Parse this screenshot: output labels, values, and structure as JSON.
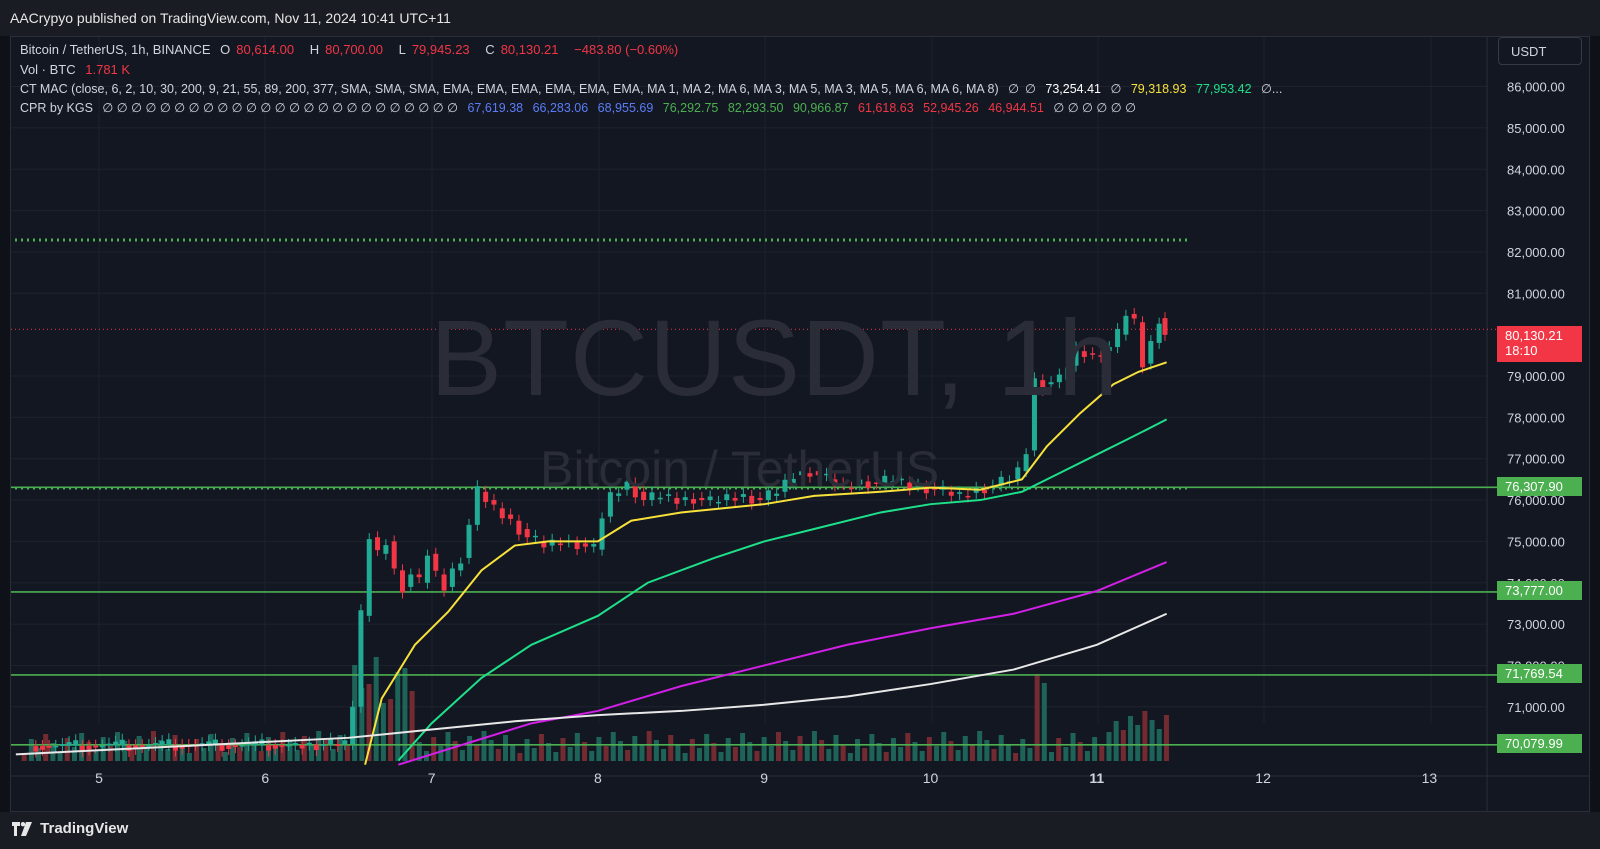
{
  "header": {
    "publisher_line": "AACrypyo published on TradingView.com, Nov 11, 2024 10:41 UTC+11"
  },
  "legend": {
    "symbol": "Bitcoin / TetherUS, 1h, BINANCE",
    "open_label": "O",
    "open_value": "80,614.00",
    "high_label": "H",
    "high_value": "80,700.00",
    "low_label": "L",
    "low_value": "79,945.23",
    "close_label": "C",
    "close_value": "80,130.21",
    "change": "−483.80 (−0.60%)",
    "volume_label": "Vol · BTC",
    "volume_value": "1.781 K",
    "ctmac_label": "CT MAC (close, 6, 2, 10, 30, 200, 9, 21, 55, 89, 200, 377, SMA, SMA, SMA, EMA, EMA, EMA, EMA, EMA, EMA, MA 1, MA 2, MA 6, MA 3, MA 5, MA 3, MA 5, MA 6, MA 6, MA 8)",
    "ctmac_values": [
      "∅",
      "∅",
      "73,254.41",
      "∅",
      "79,318.93",
      "77,953.42",
      "∅..."
    ],
    "cpr_label": "CPR by KGS",
    "cpr_empty": "∅ ∅ ∅ ∅ ∅ ∅ ∅ ∅ ∅ ∅ ∅ ∅ ∅ ∅ ∅ ∅ ∅ ∅ ∅ ∅ ∅ ∅ ∅ ∅ ∅",
    "cpr_values": [
      "67,619.38",
      "66,283.06",
      "68,955.69",
      "76,292.75",
      "82,293.50",
      "90,966.87",
      "61,618.63",
      "52,945.26",
      "46,944.51"
    ],
    "cpr_trailing": "∅ ∅ ∅ ∅ ∅ ∅"
  },
  "currency": "USDT",
  "watermark": {
    "title": "BTCUSDT, 1h",
    "subtitle": "Bitcoin / TetherUS"
  },
  "price_axis": {
    "labels": [
      "86,000.00",
      "85,000.00",
      "84,000.00",
      "83,000.00",
      "82,000.00",
      "81,000.00",
      "79,000.00",
      "78,000.00",
      "77,000.00",
      "76,000.00",
      "75,000.00",
      "74,000.00",
      "73,000.00",
      "72,000.00",
      "71,000.00"
    ],
    "ticks": [
      86000,
      85000,
      84000,
      83000,
      82000,
      81000,
      79000,
      78000,
      77000,
      76000,
      75000,
      74000,
      73000,
      72000,
      71000
    ],
    "last_price": "80,130.21",
    "countdown": "18:10",
    "levels": [
      {
        "price": 76307.9,
        "label": "76,307.90"
      },
      {
        "price": 73777.0,
        "label": "73,777.00"
      },
      {
        "price": 71769.54,
        "label": "71,769.54"
      },
      {
        "price": 70079.99,
        "label": "70,079.99"
      }
    ]
  },
  "time_axis": {
    "labels": [
      "5",
      "6",
      "7",
      "8",
      "9",
      "10",
      "11",
      "12",
      "13"
    ],
    "bold_index": 6
  },
  "colors": {
    "up": "#22ab94",
    "down": "#f23645",
    "level": "#4caf50",
    "dotted": "#4caf50",
    "ma_yellow": "#f7e13a",
    "ma_green": "#1ee08a",
    "ma_magenta": "#d21fe6",
    "ma_white": "#e8e8e8"
  },
  "chart_data": {
    "type": "candlestick",
    "title": "BTCUSDT, 1h",
    "x_axis": [
      "5",
      "6",
      "7",
      "8",
      "9",
      "10",
      "11",
      "12",
      "13"
    ],
    "ylim": [
      69600,
      86800
    ],
    "dotted_lines": [
      82290,
      76290
    ],
    "close_path": [
      [
        4.6,
        70050
      ],
      [
        5.0,
        70060
      ],
      [
        5.4,
        70080
      ],
      [
        5.8,
        70070
      ],
      [
        6.2,
        70080
      ],
      [
        6.5,
        70100
      ],
      [
        6.55,
        71000
      ],
      [
        6.6,
        73200
      ],
      [
        6.65,
        75100
      ],
      [
        6.7,
        74700
      ],
      [
        6.75,
        75000
      ],
      [
        6.8,
        74300
      ],
      [
        6.85,
        73900
      ],
      [
        6.9,
        74200
      ],
      [
        6.95,
        74000
      ],
      [
        7.0,
        74700
      ],
      [
        7.05,
        74200
      ],
      [
        7.1,
        73900
      ],
      [
        7.15,
        74300
      ],
      [
        7.2,
        74600
      ],
      [
        7.25,
        75400
      ],
      [
        7.3,
        76200
      ],
      [
        7.35,
        76000
      ],
      [
        7.4,
        75800
      ],
      [
        7.5,
        75500
      ],
      [
        7.6,
        75100
      ],
      [
        7.7,
        74900
      ],
      [
        7.8,
        75000
      ],
      [
        7.9,
        74950
      ],
      [
        8.0,
        74800
      ],
      [
        8.05,
        75600
      ],
      [
        8.1,
        76100
      ],
      [
        8.2,
        76400
      ],
      [
        8.3,
        76000
      ],
      [
        8.4,
        76100
      ],
      [
        8.5,
        76000
      ],
      [
        8.6,
        76050
      ],
      [
        8.7,
        75950
      ],
      [
        8.8,
        76050
      ],
      [
        8.9,
        76100
      ],
      [
        9.0,
        76000
      ],
      [
        9.1,
        76200
      ],
      [
        9.2,
        76600
      ],
      [
        9.3,
        76700
      ],
      [
        9.4,
        76500
      ],
      [
        9.5,
        76300
      ],
      [
        9.6,
        76450
      ],
      [
        9.7,
        76400
      ],
      [
        9.8,
        76500
      ],
      [
        9.9,
        76350
      ],
      [
        10.0,
        76300
      ],
      [
        10.1,
        76200
      ],
      [
        10.2,
        76100
      ],
      [
        10.3,
        76250
      ],
      [
        10.4,
        76350
      ],
      [
        10.5,
        76500
      ],
      [
        10.55,
        76700
      ],
      [
        10.6,
        77200
      ],
      [
        10.65,
        78900
      ],
      [
        10.7,
        78800
      ],
      [
        10.8,
        78900
      ],
      [
        10.9,
        79600
      ],
      [
        11.0,
        79500
      ],
      [
        11.1,
        79700
      ],
      [
        11.15,
        80000
      ],
      [
        11.2,
        80500
      ],
      [
        11.25,
        80300
      ],
      [
        11.3,
        79300
      ],
      [
        11.35,
        79800
      ],
      [
        11.4,
        80400
      ],
      [
        11.42,
        80130
      ]
    ],
    "ma_series": [
      {
        "name": "",
        "color": "#f7e13a",
        "points": [
          [
            6.6,
            69600
          ],
          [
            6.7,
            71200
          ],
          [
            6.9,
            72500
          ],
          [
            7.1,
            73300
          ],
          [
            7.3,
            74300
          ],
          [
            7.5,
            74900
          ],
          [
            7.7,
            75000
          ],
          [
            8.0,
            75000
          ],
          [
            8.2,
            75500
          ],
          [
            8.5,
            75700
          ],
          [
            9.0,
            75900
          ],
          [
            9.3,
            76100
          ],
          [
            9.7,
            76200
          ],
          [
            10.0,
            76300
          ],
          [
            10.3,
            76250
          ],
          [
            10.55,
            76500
          ],
          [
            10.7,
            77300
          ],
          [
            10.9,
            78100
          ],
          [
            11.1,
            78800
          ],
          [
            11.25,
            79100
          ],
          [
            11.42,
            79330
          ]
        ]
      },
      {
        "name": "",
        "color": "#1ee08a",
        "points": [
          [
            6.8,
            69700
          ],
          [
            7.0,
            70600
          ],
          [
            7.3,
            71700
          ],
          [
            7.6,
            72500
          ],
          [
            8.0,
            73200
          ],
          [
            8.3,
            74000
          ],
          [
            8.7,
            74600
          ],
          [
            9.0,
            75000
          ],
          [
            9.3,
            75300
          ],
          [
            9.7,
            75700
          ],
          [
            10.0,
            75900
          ],
          [
            10.3,
            76000
          ],
          [
            10.55,
            76200
          ],
          [
            10.8,
            76700
          ],
          [
            11.0,
            77100
          ],
          [
            11.2,
            77500
          ],
          [
            11.42,
            77950
          ]
        ]
      },
      {
        "name": "",
        "color": "#d21fe6",
        "points": [
          [
            6.8,
            69600
          ],
          [
            7.2,
            70100
          ],
          [
            7.6,
            70600
          ],
          [
            8.0,
            70900
          ],
          [
            8.5,
            71500
          ],
          [
            9.0,
            72000
          ],
          [
            9.5,
            72500
          ],
          [
            10.0,
            72900
          ],
          [
            10.5,
            73250
          ],
          [
            11.0,
            73800
          ],
          [
            11.42,
            74500
          ]
        ]
      },
      {
        "name": "",
        "color": "#e8e8e8",
        "points": [
          [
            4.5,
            69850
          ],
          [
            5.5,
            70050
          ],
          [
            6.5,
            70250
          ],
          [
            7.0,
            70450
          ],
          [
            7.5,
            70650
          ],
          [
            8.0,
            70800
          ],
          [
            8.5,
            70900
          ],
          [
            9.0,
            71050
          ],
          [
            9.5,
            71250
          ],
          [
            10.0,
            71550
          ],
          [
            10.5,
            71900
          ],
          [
            11.0,
            72500
          ],
          [
            11.42,
            73250
          ]
        ]
      }
    ]
  }
}
